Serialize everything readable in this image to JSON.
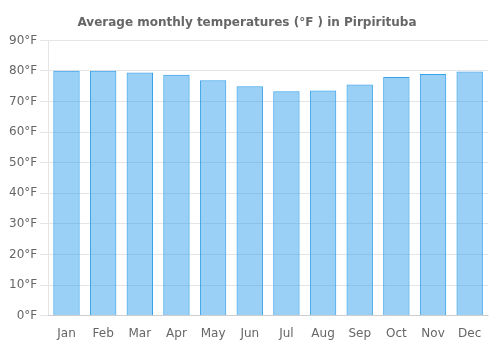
{
  "chart_data": {
    "type": "bar",
    "title": "Average monthly temperatures (°F ) in Pirpirituba",
    "categories": [
      "Jan",
      "Feb",
      "Mar",
      "Apr",
      "May",
      "Jun",
      "Jul",
      "Aug",
      "Sep",
      "Oct",
      "Nov",
      "Dec"
    ],
    "values": [
      80.1,
      80.1,
      79.5,
      78.8,
      77.0,
      75.0,
      73.4,
      73.6,
      75.6,
      78.0,
      79.0,
      79.8
    ],
    "ylim": [
      0,
      90
    ],
    "yticks": [
      {
        "value": 0,
        "label": "0°F"
      },
      {
        "value": 10,
        "label": "10°F"
      },
      {
        "value": 20,
        "label": "20°F"
      },
      {
        "value": 30,
        "label": "30°F"
      },
      {
        "value": 40,
        "label": "40°F"
      },
      {
        "value": 50,
        "label": "50°F"
      },
      {
        "value": 60,
        "label": "60°F"
      },
      {
        "value": 70,
        "label": "70°F"
      },
      {
        "value": 80,
        "label": "80°F"
      },
      {
        "value": 90,
        "label": "90°F"
      }
    ],
    "grid": true
  }
}
